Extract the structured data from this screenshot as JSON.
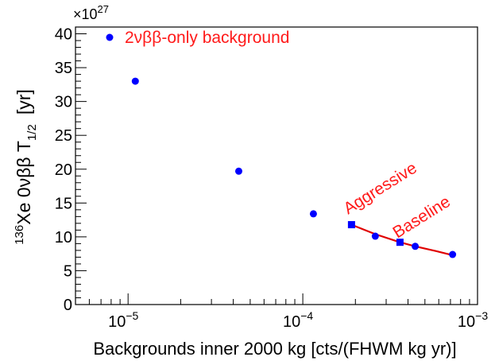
{
  "chart_data": {
    "type": "scatter",
    "xlabel": "Backgrounds inner 2000 kg [cts/(FHWM kg yr)]",
    "ylabel": {
      "superscript": "136",
      "text": "Xe  0νββ  T",
      "subscript": "1/2",
      "unit": "[yr]"
    },
    "y_multiplier": "×10",
    "y_multiplier_exp": "27",
    "x_scale": "log",
    "xlim": [
      5e-06,
      0.001
    ],
    "ylim": [
      0,
      41
    ],
    "x_tick_labels": [
      {
        "base": "10",
        "exp": "−5",
        "value": 1e-05
      },
      {
        "base": "10",
        "exp": "−4",
        "value": 0.0001
      },
      {
        "base": "10",
        "exp": "−3",
        "value": 0.001
      }
    ],
    "y_ticks": [
      "0",
      "5",
      "10",
      "15",
      "20",
      "25",
      "30",
      "35",
      "40"
    ],
    "legend": {
      "label": "2νββ-only background",
      "position": "top-left",
      "color": "#0000ff"
    },
    "series": [
      {
        "name": "2νββ-only background",
        "marker": "circle",
        "color": "#0000ff",
        "points": [
          {
            "x": 1.1e-05,
            "y": 33.0
          },
          {
            "x": 4.3e-05,
            "y": 19.7
          },
          {
            "x": 0.000115,
            "y": 13.4
          },
          {
            "x": 0.00026,
            "y": 10.1
          },
          {
            "x": 0.00044,
            "y": 8.6
          },
          {
            "x": 0.00072,
            "y": 7.4
          }
        ]
      },
      {
        "name": "Aggressive / Baseline",
        "marker": "square",
        "color": "#0000ff",
        "points": [
          {
            "x": 0.00019,
            "y": 11.8
          },
          {
            "x": 0.00036,
            "y": 9.2
          }
        ]
      }
    ],
    "curve": {
      "color": "#e00000",
      "points": [
        {
          "x": 0.00019,
          "y": 11.8
        },
        {
          "x": 0.00026,
          "y": 10.4
        },
        {
          "x": 0.00036,
          "y": 9.2
        },
        {
          "x": 0.00044,
          "y": 8.6
        },
        {
          "x": 0.00058,
          "y": 7.9
        },
        {
          "x": 0.00072,
          "y": 7.3
        }
      ]
    },
    "annotations": [
      {
        "text": "Aggressive",
        "color": "#ff1a1a"
      },
      {
        "text": "Baseline",
        "color": "#ff1a1a"
      }
    ]
  }
}
